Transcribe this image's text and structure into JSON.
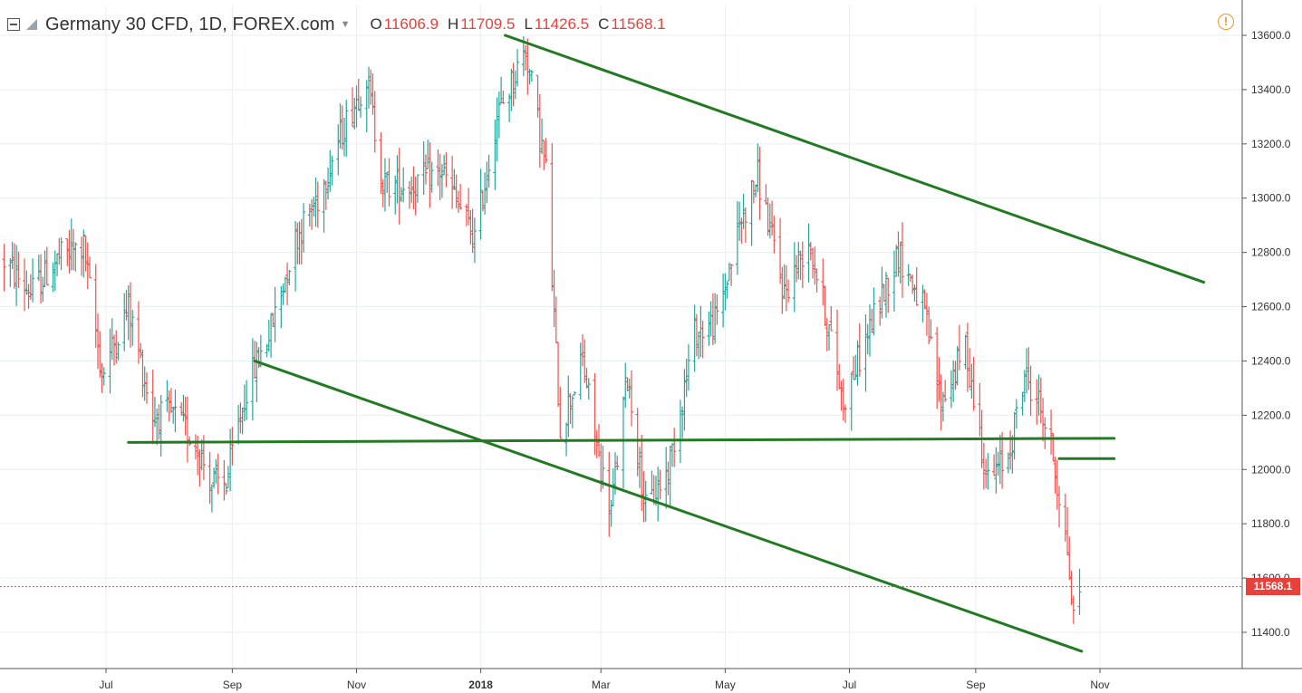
{
  "header": {
    "symbol": "Germany 30 CFD, 1D, FOREX.com",
    "dropdown_icon": "caret-down",
    "ohlc": [
      {
        "key": "O",
        "value": "11606.9"
      },
      {
        "key": "H",
        "value": "11709.5"
      },
      {
        "key": "L",
        "value": "11426.5"
      },
      {
        "key": "C",
        "value": "11568.1"
      }
    ],
    "alert_icon": "!"
  },
  "price_badge": "11568.1",
  "colors": {
    "up": "#26a69a",
    "down": "#ef5350",
    "trendline": "#237a23",
    "grid": "#e9eef2",
    "badge": "#e8413c"
  },
  "chart_data": {
    "type": "ohlc",
    "title": "Germany 30 CFD, 1D, FOREX.com",
    "y_axis_position": "right",
    "ylim": [
      11270,
      13660
    ],
    "yticks": [
      "13600.0",
      "13400.0",
      "13200.0",
      "13000.0",
      "12800.0",
      "12600.0",
      "12400.0",
      "12200.0",
      "12000.0",
      "11800.0",
      "11600.0",
      "11400.0"
    ],
    "xticks": [
      {
        "label": "Jul",
        "date": "2017-07-01"
      },
      {
        "label": "Sep",
        "date": "2017-09-01"
      },
      {
        "label": "Nov",
        "date": "2017-11-01"
      },
      {
        "label": "2018",
        "date": "2018-01-01",
        "bold": true
      },
      {
        "label": "Mar",
        "date": "2018-03-01"
      },
      {
        "label": "May",
        "date": "2018-05-01"
      },
      {
        "label": "Jul",
        "date": "2018-07-01"
      },
      {
        "label": "Sep",
        "date": "2018-09-01"
      },
      {
        "label": "Nov",
        "date": "2018-11-01"
      }
    ],
    "xlim": [
      "2017-05-12",
      "2018-12-22"
    ],
    "grid": true,
    "last_price": 11568.1,
    "price_series": [
      [
        "2017-05-12",
        12770
      ],
      [
        "2017-05-25",
        12650
      ],
      [
        "2017-06-08",
        12780
      ],
      [
        "2017-06-20",
        12820
      ],
      [
        "2017-06-29",
        12350
      ],
      [
        "2017-07-12",
        12600
      ],
      [
        "2017-07-24",
        12200
      ],
      [
        "2017-08-03",
        12200
      ],
      [
        "2017-08-14",
        12100
      ],
      [
        "2017-08-22",
        11950
      ],
      [
        "2017-08-29",
        11950
      ],
      [
        "2017-09-08",
        12300
      ],
      [
        "2017-09-20",
        12520
      ],
      [
        "2017-10-02",
        12850
      ],
      [
        "2017-10-13",
        13000
      ],
      [
        "2017-10-25",
        13250
      ],
      [
        "2017-11-06",
        13450
      ],
      [
        "2017-11-14",
        13050
      ],
      [
        "2017-11-28",
        13050
      ],
      [
        "2017-12-13",
        13100
      ],
      [
        "2017-12-29",
        12850
      ],
      [
        "2018-01-09",
        13300
      ],
      [
        "2018-01-23",
        13550
      ],
      [
        "2018-02-02",
        13100
      ],
      [
        "2018-02-09",
        12150
      ],
      [
        "2018-02-20",
        12400
      ],
      [
        "2018-03-01",
        12000
      ],
      [
        "2018-03-06",
        11850
      ],
      [
        "2018-03-14",
        12350
      ],
      [
        "2018-03-23",
        11850
      ],
      [
        "2018-04-03",
        12000
      ],
      [
        "2018-04-16",
        12500
      ],
      [
        "2018-04-27",
        12550
      ],
      [
        "2018-05-08",
        12900
      ],
      [
        "2018-05-17",
        13080
      ],
      [
        "2018-05-30",
        12650
      ],
      [
        "2018-06-11",
        12850
      ],
      [
        "2018-06-20",
        12550
      ],
      [
        "2018-06-28",
        12250
      ],
      [
        "2018-07-10",
        12500
      ],
      [
        "2018-07-25",
        12800
      ],
      [
        "2018-08-06",
        12600
      ],
      [
        "2018-08-15",
        12250
      ],
      [
        "2018-08-27",
        12450
      ],
      [
        "2018-09-07",
        11950
      ],
      [
        "2018-09-17",
        12050
      ],
      [
        "2018-09-25",
        12350
      ],
      [
        "2018-10-02",
        12250
      ],
      [
        "2018-10-09",
        12050
      ],
      [
        "2018-10-16",
        11700
      ],
      [
        "2018-10-19",
        11450
      ],
      [
        "2018-10-22",
        11568
      ]
    ],
    "lines": [
      {
        "name": "",
        "from": [
          "2018-01-13",
          13600
        ],
        "to": [
          "2018-12-22",
          12690
        ]
      },
      {
        "name": "",
        "from": [
          "2017-09-12",
          12400
        ],
        "to": [
          "2018-10-23",
          11330
        ]
      },
      {
        "name": "",
        "from": [
          "2017-07-12",
          12100
        ],
        "to": [
          "2018-11-08",
          12115
        ]
      },
      {
        "name": "",
        "from": [
          "2018-10-12",
          12040
        ],
        "to": [
          "2018-11-08",
          12040
        ]
      }
    ]
  }
}
